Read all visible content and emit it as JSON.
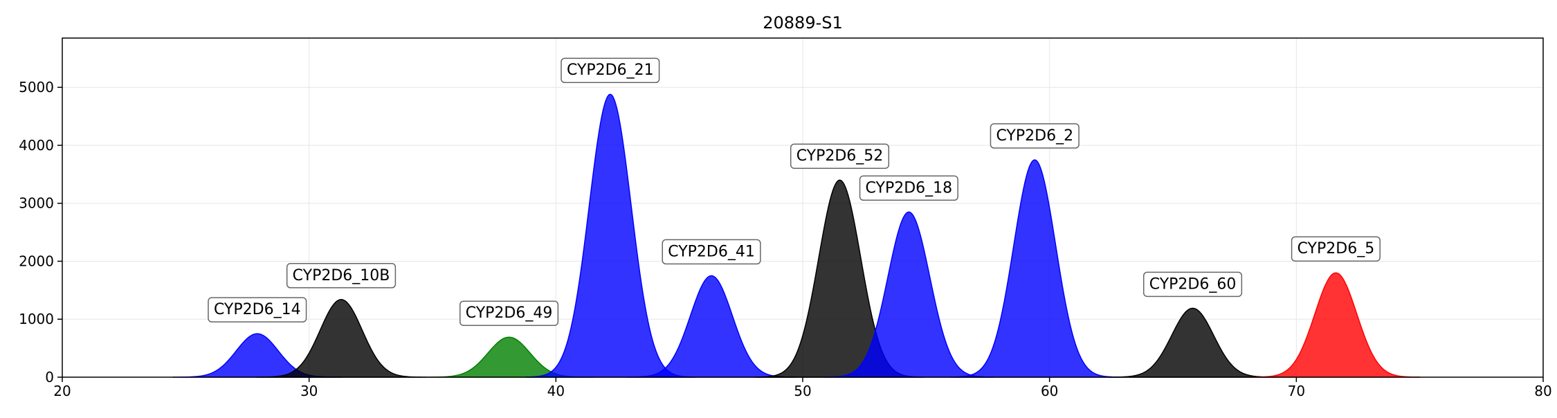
{
  "chart_data": {
    "type": "area",
    "title": "20889-S1",
    "xlabel": "",
    "ylabel": "",
    "xlim": [
      20,
      80
    ],
    "ylim": [
      0,
      5850
    ],
    "xticks": [
      20,
      30,
      40,
      50,
      60,
      70,
      80
    ],
    "yticks": [
      0,
      1000,
      2000,
      3000,
      4000,
      5000
    ],
    "grid": true,
    "legend": "none",
    "series": [
      {
        "label": "CYP2D6_14",
        "center": 27.9,
        "height": 750,
        "width": 0.85,
        "color": "#0000ff"
      },
      {
        "label": "CYP2D6_10B",
        "center": 31.3,
        "height": 1340,
        "width": 0.85,
        "color": "#000000"
      },
      {
        "label": "CYP2D6_49",
        "center": 38.1,
        "height": 690,
        "width": 0.85,
        "color": "#008000"
      },
      {
        "label": "CYP2D6_21",
        "center": 42.2,
        "height": 4880,
        "width": 0.85,
        "color": "#0000ff"
      },
      {
        "label": "CYP2D6_41",
        "center": 46.3,
        "height": 1750,
        "width": 0.85,
        "color": "#0000ff"
      },
      {
        "label": "CYP2D6_52",
        "center": 51.5,
        "height": 3400,
        "width": 0.85,
        "color": "#000000"
      },
      {
        "label": "CYP2D6_18",
        "center": 54.3,
        "height": 2850,
        "width": 0.85,
        "color": "#0000ff"
      },
      {
        "label": "CYP2D6_2",
        "center": 59.4,
        "height": 3750,
        "width": 0.85,
        "color": "#0000ff"
      },
      {
        "label": "CYP2D6_60",
        "center": 65.8,
        "height": 1190,
        "width": 0.85,
        "color": "#000000"
      },
      {
        "label": "CYP2D6_5",
        "center": 71.6,
        "height": 1800,
        "width": 0.85,
        "color": "#ff0000"
      }
    ]
  }
}
